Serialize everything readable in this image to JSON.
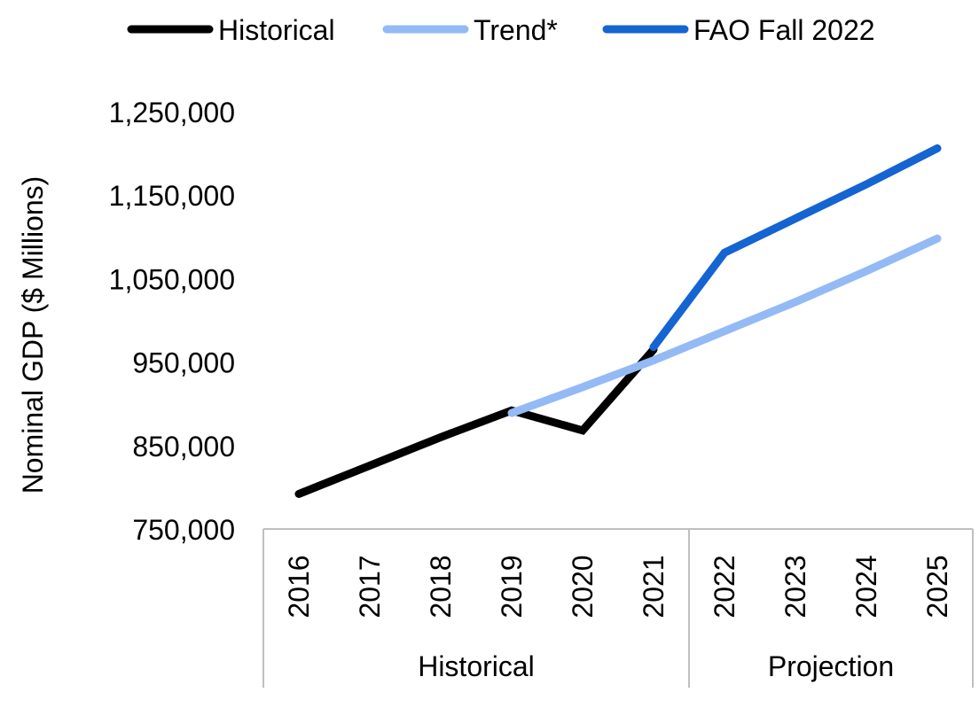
{
  "chart_data": {
    "type": "line",
    "title": "",
    "ylabel": "Nominal GDP ($ Millions)",
    "xlabel": "",
    "ylim": [
      750000,
      1250000
    ],
    "yticks": [
      750000,
      850000,
      950000,
      1050000,
      1150000,
      1250000
    ],
    "ytick_labels": [
      "750,000",
      "850,000",
      "950,000",
      "1,050,000",
      "1,150,000",
      "1,250,000"
    ],
    "categories": [
      "2016",
      "2017",
      "2018",
      "2019",
      "2020",
      "2021",
      "2022",
      "2023",
      "2024",
      "2025"
    ],
    "groups": [
      {
        "label": "Historical",
        "start": 0,
        "end": 5
      },
      {
        "label": "Projection",
        "start": 6,
        "end": 9
      }
    ],
    "legend_position": "top",
    "grid": false,
    "series": [
      {
        "name": "Historical",
        "color": "#000000",
        "values": [
          792000,
          826000,
          860000,
          892000,
          868000,
          965000,
          null,
          null,
          null,
          null
        ]
      },
      {
        "name": "Trend*",
        "color": "#93baf5",
        "values": [
          null,
          null,
          null,
          889000,
          920000,
          952000,
          987000,
          1022000,
          1059000,
          1098000
        ]
      },
      {
        "name": "FAO Fall 2022",
        "color": "#1464d2",
        "values": [
          null,
          null,
          null,
          null,
          null,
          968000,
          1081000,
          1122000,
          1163000,
          1206000
        ]
      }
    ]
  }
}
